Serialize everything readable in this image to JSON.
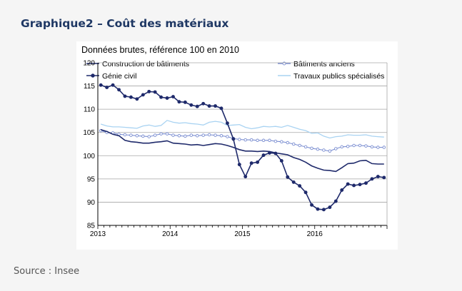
{
  "page": {
    "title": "Graphique2 – Coût des matériaux",
    "source": "Source : Insee"
  },
  "colors": {
    "construction": "#1f2a6b",
    "anciens": "#7b8ed1",
    "genie": "#1f2a6b",
    "travaux": "#a9d3f2",
    "title": "#1f3864",
    "grid": "#a6a6a6"
  },
  "chart_data": {
    "type": "line",
    "title": "Données brutes, référence 100 en 2010",
    "xlabel": "",
    "ylabel": "",
    "ylim": [
      85,
      120
    ],
    "yticks": [
      85,
      90,
      95,
      100,
      105,
      110,
      115,
      120
    ],
    "x_tick_labels": [
      "2013",
      "2014",
      "2015",
      "2016"
    ],
    "x_range_months": "2013-01 to 2016-12",
    "grid": true,
    "legend_placement": "top",
    "series": [
      {
        "name": "Construction de bâtiments",
        "key": "construction",
        "marker": "none",
        "values": [
          105.6,
          105.2,
          104.6,
          104.3,
          103.3,
          103.0,
          102.9,
          102.7,
          102.7,
          102.9,
          103.0,
          103.2,
          102.7,
          102.6,
          102.5,
          102.3,
          102.4,
          102.2,
          102.4,
          102.6,
          102.5,
          102.2,
          101.8,
          101.3,
          101.0,
          101.0,
          100.9,
          101.0,
          100.9,
          100.6,
          100.4,
          100.2,
          99.6,
          99.2,
          98.6,
          97.8,
          97.3,
          96.9,
          96.8,
          96.6,
          97.4,
          98.3,
          98.4,
          98.9,
          99.0,
          98.3,
          98.2,
          98.2
        ]
      },
      {
        "name": "Bâtiments anciens",
        "key": "anciens",
        "marker": "open-circle",
        "values": [
          105.4,
          105.0,
          104.9,
          104.6,
          104.5,
          104.4,
          104.3,
          104.2,
          104.1,
          104.4,
          104.7,
          104.7,
          104.4,
          104.3,
          104.2,
          104.4,
          104.3,
          104.4,
          104.5,
          104.4,
          104.3,
          104.1,
          103.7,
          103.5,
          103.4,
          103.4,
          103.3,
          103.3,
          103.3,
          103.1,
          103.0,
          102.8,
          102.5,
          102.2,
          101.9,
          101.6,
          101.4,
          101.2,
          101.0,
          101.5,
          101.9,
          102.0,
          102.2,
          102.2,
          102.1,
          101.9,
          101.8,
          101.8
        ]
      },
      {
        "name": "Génie civil",
        "key": "genie",
        "marker": "filled-circle",
        "values": [
          115.2,
          114.7,
          115.2,
          114.2,
          112.8,
          112.6,
          112.2,
          113.1,
          113.8,
          113.7,
          112.6,
          112.4,
          112.7,
          111.6,
          111.5,
          110.9,
          110.6,
          111.2,
          110.7,
          110.7,
          110.2,
          107.0,
          103.6,
          98.1,
          95.5,
          98.4,
          98.6,
          100.1,
          100.6,
          100.5,
          98.9,
          95.4,
          94.3,
          93.5,
          92.1,
          89.4,
          88.5,
          88.4,
          88.9,
          90.2,
          92.6,
          93.9,
          93.6,
          93.8,
          94.1,
          95.0,
          95.5,
          95.3
        ]
      },
      {
        "name": "Travaux publics spécialisés",
        "key": "travaux",
        "marker": "none",
        "values": [
          106.8,
          106.4,
          106.2,
          106.2,
          106.1,
          106.0,
          105.9,
          106.4,
          106.6,
          106.3,
          106.5,
          107.6,
          107.2,
          107.0,
          107.1,
          106.9,
          106.8,
          106.6,
          107.2,
          107.4,
          107.2,
          106.5,
          106.6,
          106.7,
          106.1,
          105.8,
          106.0,
          106.3,
          106.2,
          106.3,
          106.1,
          106.5,
          106.1,
          105.7,
          105.4,
          104.8,
          104.9,
          104.2,
          103.8,
          104.1,
          104.2,
          104.5,
          104.4,
          104.4,
          104.5,
          104.2,
          104.1,
          104.0
        ]
      }
    ]
  }
}
